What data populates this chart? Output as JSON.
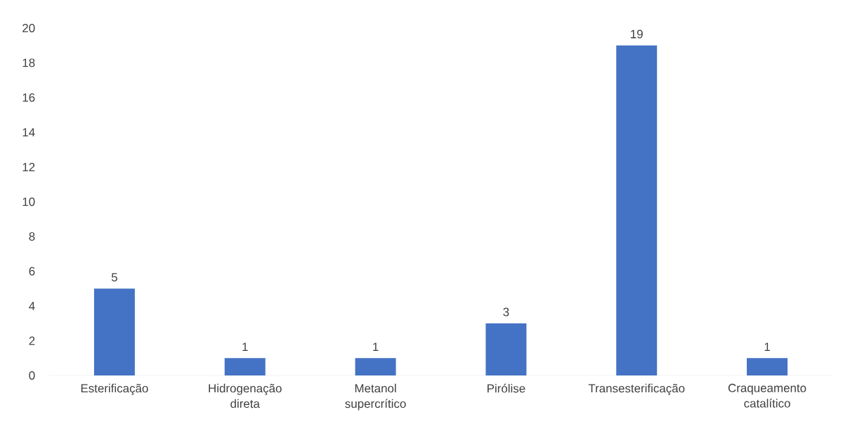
{
  "chart_data": {
    "type": "bar",
    "categories": [
      "Esterificação",
      "Hidrogenação direta",
      "Metanol supercrítico",
      "Pirólise",
      "Transesterificação",
      "Craqueamento catalítico"
    ],
    "values": [
      5,
      1,
      1,
      3,
      19,
      1
    ],
    "color": "#4472c4",
    "ylim": [
      0,
      20
    ],
    "yticks": [
      0,
      2,
      4,
      6,
      8,
      10,
      12,
      14,
      16,
      18,
      20
    ],
    "data_labels": true,
    "grid": false
  }
}
